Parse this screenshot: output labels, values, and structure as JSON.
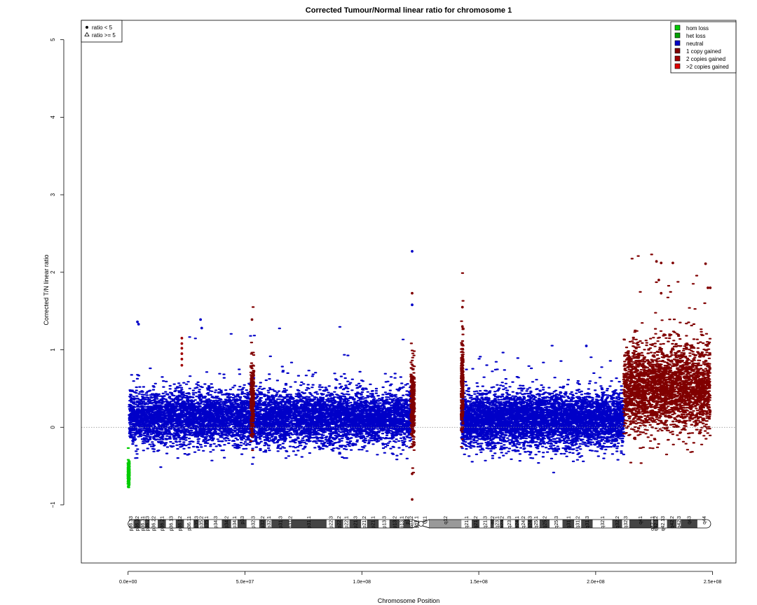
{
  "chart_data": {
    "type": "scatter",
    "title": "Corrected Tumour/Normal linear ratio for chromosome  1",
    "xlabel": "Chromosome Position",
    "ylabel": "Corrected T/N linear ratio",
    "xlim": [
      -20000000,
      260000000
    ],
    "ylim": [
      -1.75,
      5.25
    ],
    "x_ticks": [
      {
        "value": 0,
        "label": "0.0e+00"
      },
      {
        "value": 50000000,
        "label": "5.0e+07"
      },
      {
        "value": 100000000,
        "label": "1.0e+08"
      },
      {
        "value": 150000000,
        "label": "1.5e+08"
      },
      {
        "value": 200000000,
        "label": "2.0e+08"
      },
      {
        "value": 250000000,
        "label": "2.5e+08"
      }
    ],
    "y_ticks": [
      {
        "value": -1,
        "label": "−1"
      },
      {
        "value": 0,
        "label": "0"
      },
      {
        "value": 1,
        "label": "1"
      },
      {
        "value": 2,
        "label": "2"
      },
      {
        "value": 3,
        "label": "3"
      },
      {
        "value": 4,
        "label": "4"
      },
      {
        "value": 5,
        "label": "5"
      }
    ],
    "reference_line": {
      "y": 0,
      "style": "dotted"
    },
    "grid": false,
    "shape_legend": {
      "position": "top-left",
      "entries": [
        {
          "shape": "circle",
          "label": "ratio < 5"
        },
        {
          "shape": "triangle",
          "label": "ratio >= 5"
        }
      ]
    },
    "color_legend": {
      "position": "top-right",
      "entries": [
        {
          "label": "hom loss",
          "color": "#00cc00"
        },
        {
          "label": "het loss",
          "color": "#00a000"
        },
        {
          "label": "neutral",
          "color": "#0000c8"
        },
        {
          "label": "1 copy gained",
          "color": "#800000"
        },
        {
          "label": "2 copies gained",
          "color": "#a00000"
        },
        {
          "label": ">2 copies gained",
          "color": "#e00000"
        }
      ]
    },
    "segments": [
      {
        "state": "hom loss",
        "x_start": 0,
        "x_end": 500000,
        "y_mean": -0.6,
        "y_sd": 0.07
      },
      {
        "state": "neutral",
        "x_start": 500000,
        "x_end": 122000000,
        "y_mean": 0.12,
        "y_sd": 0.17
      },
      {
        "state": "1 copy gained",
        "x_start": 52500000,
        "x_end": 53800000,
        "y_mean": 0.35,
        "y_sd": 0.22
      },
      {
        "state": "1 copy gained",
        "x_start": 121000000,
        "x_end": 122500000,
        "y_mean": 0.3,
        "y_sd": 0.3
      },
      {
        "state": "neutral",
        "x_start": 142500000,
        "x_end": 212000000,
        "y_mean": 0.1,
        "y_sd": 0.17
      },
      {
        "state": "1 copy gained",
        "x_start": 142500000,
        "x_end": 143300000,
        "y_mean": 0.5,
        "y_sd": 0.3
      },
      {
        "state": "1 copy gained",
        "x_start": 212000000,
        "x_end": 249000000,
        "y_mean": 0.5,
        "y_sd": 0.28
      }
    ],
    "highlight_points": [
      {
        "x": 121500000,
        "y": 2.27,
        "state": "neutral"
      },
      {
        "x": 121500000,
        "y": 1.73,
        "state": "1 copy gained"
      },
      {
        "x": 121500000,
        "y": 1.58,
        "state": "neutral"
      },
      {
        "x": 121500000,
        "y": -0.93,
        "state": "1 copy gained"
      },
      {
        "x": 121500000,
        "y": -0.6,
        "state": "1 copy gained"
      },
      {
        "x": 23000000,
        "y": 1.15,
        "state": "2 copies gained"
      },
      {
        "x": 23000000,
        "y": 1.08,
        "state": "2 copies gained"
      },
      {
        "x": 23000000,
        "y": 1.02,
        "state": "2 copies gained"
      },
      {
        "x": 23000000,
        "y": 0.95,
        "state": "2 copies gained"
      },
      {
        "x": 23000000,
        "y": 0.88,
        "state": "2 copies gained"
      },
      {
        "x": 23000000,
        "y": 0.8,
        "state": "2 copies gained"
      },
      {
        "x": 53000000,
        "y": 1.39,
        "state": "1 copy gained"
      },
      {
        "x": 143000000,
        "y": 1.55,
        "state": "1 copy gained"
      },
      {
        "x": 143000000,
        "y": 1.3,
        "state": "1 copy gained"
      },
      {
        "x": 4000000,
        "y": 1.36,
        "state": "neutral"
      },
      {
        "x": 4500000,
        "y": 1.33,
        "state": "neutral"
      },
      {
        "x": 31000000,
        "y": 1.39,
        "state": "neutral"
      },
      {
        "x": 31500000,
        "y": 1.28,
        "state": "neutral"
      },
      {
        "x": 196000000,
        "y": 1.05,
        "state": "neutral"
      },
      {
        "x": 226000000,
        "y": 2.14,
        "state": "1 copy gained"
      },
      {
        "x": 228000000,
        "y": 2.12,
        "state": "1 copy gained"
      },
      {
        "x": 233000000,
        "y": 2.12,
        "state": "1 copy gained"
      },
      {
        "x": 247000000,
        "y": 2.11,
        "state": "1 copy gained"
      },
      {
        "x": 227000000,
        "y": 1.9,
        "state": "1 copy gained"
      },
      {
        "x": 248000000,
        "y": 1.8,
        "state": "1 copy gained"
      },
      {
        "x": 249000000,
        "y": 1.8,
        "state": "1 copy gained"
      },
      {
        "x": 228000000,
        "y": 1.73,
        "state": "1 copy gained"
      }
    ],
    "ideogram": {
      "bands": [
        {
          "name": "p36.33",
          "start": 0,
          "end": 2300000,
          "stain": "gneg"
        },
        {
          "name": "p36.32",
          "start": 2300000,
          "end": 5400000,
          "stain": "gpos25"
        },
        {
          "name": "p36.31",
          "start": 5400000,
          "end": 7200000,
          "stain": "gneg"
        },
        {
          "name": "p36.23",
          "start": 7200000,
          "end": 9200000,
          "stain": "gpos25"
        },
        {
          "name": "p36.22",
          "start": 9200000,
          "end": 12700000,
          "stain": "gneg"
        },
        {
          "name": "p36.21",
          "start": 12700000,
          "end": 16200000,
          "stain": "gpos50"
        },
        {
          "name": "p36.13",
          "start": 16200000,
          "end": 20400000,
          "stain": "gneg"
        },
        {
          "name": "p36.12",
          "start": 20400000,
          "end": 23900000,
          "stain": "gpos25"
        },
        {
          "name": "p36.11",
          "start": 23900000,
          "end": 28000000,
          "stain": "gneg"
        },
        {
          "name": "p35.3",
          "start": 28000000,
          "end": 30200000,
          "stain": "gpos25"
        },
        {
          "name": "p35.2",
          "start": 30200000,
          "end": 32400000,
          "stain": "gneg"
        },
        {
          "name": "p35.1",
          "start": 32400000,
          "end": 34600000,
          "stain": "gpos25"
        },
        {
          "name": "p34.3",
          "start": 34600000,
          "end": 40100000,
          "stain": "gneg"
        },
        {
          "name": "p34.2",
          "start": 40100000,
          "end": 44100000,
          "stain": "gpos25"
        },
        {
          "name": "p34.1",
          "start": 44100000,
          "end": 46800000,
          "stain": "gneg"
        },
        {
          "name": "p33",
          "start": 46800000,
          "end": 50700000,
          "stain": "gpos75"
        },
        {
          "name": "p32.3",
          "start": 50700000,
          "end": 56100000,
          "stain": "gneg"
        },
        {
          "name": "p32.2",
          "start": 56100000,
          "end": 59000000,
          "stain": "gpos50"
        },
        {
          "name": "p32.1",
          "start": 59000000,
          "end": 61300000,
          "stain": "gneg"
        },
        {
          "name": "p31.3",
          "start": 61300000,
          "end": 68900000,
          "stain": "gpos50"
        },
        {
          "name": "p31.2",
          "start": 68900000,
          "end": 69700000,
          "stain": "gneg"
        },
        {
          "name": "p31.1",
          "start": 69700000,
          "end": 84900000,
          "stain": "gpos100"
        },
        {
          "name": "p22.3",
          "start": 84900000,
          "end": 88400000,
          "stain": "gneg"
        },
        {
          "name": "p22.2",
          "start": 88400000,
          "end": 92000000,
          "stain": "gpos75"
        },
        {
          "name": "p22.1",
          "start": 92000000,
          "end": 94700000,
          "stain": "gneg"
        },
        {
          "name": "p21.3",
          "start": 94700000,
          "end": 99700000,
          "stain": "gpos75"
        },
        {
          "name": "p21.2",
          "start": 99700000,
          "end": 102200000,
          "stain": "gneg"
        },
        {
          "name": "p21.1",
          "start": 102200000,
          "end": 107200000,
          "stain": "gpos100"
        },
        {
          "name": "p13.3",
          "start": 107200000,
          "end": 111800000,
          "stain": "gneg"
        },
        {
          "name": "p13.2",
          "start": 111800000,
          "end": 116100000,
          "stain": "gpos50"
        },
        {
          "name": "p13.1",
          "start": 116100000,
          "end": 117800000,
          "stain": "gneg"
        },
        {
          "name": "p12",
          "start": 117800000,
          "end": 120600000,
          "stain": "gpos50"
        },
        {
          "name": "p11.2",
          "start": 120600000,
          "end": 121500000,
          "stain": "gneg"
        },
        {
          "name": "p11.1",
          "start": 121500000,
          "end": 125000000,
          "stain": "acen"
        },
        {
          "name": "q11",
          "start": 125000000,
          "end": 128900000,
          "stain": "acen"
        },
        {
          "name": "q12",
          "start": 128900000,
          "end": 142600000,
          "stain": "gvar"
        },
        {
          "name": "q21.1",
          "start": 142600000,
          "end": 147000000,
          "stain": "gneg"
        },
        {
          "name": "q21.2",
          "start": 147000000,
          "end": 150300000,
          "stain": "gpos50"
        },
        {
          "name": "q21.3",
          "start": 150300000,
          "end": 155000000,
          "stain": "gneg"
        },
        {
          "name": "q22",
          "start": 155000000,
          "end": 156500000,
          "stain": "gpos50"
        },
        {
          "name": "q23.1",
          "start": 156500000,
          "end": 159100000,
          "stain": "gneg"
        },
        {
          "name": "q23.2",
          "start": 159100000,
          "end": 160500000,
          "stain": "gpos50"
        },
        {
          "name": "q23.3",
          "start": 160500000,
          "end": 165500000,
          "stain": "gneg"
        },
        {
          "name": "q24.1",
          "start": 165500000,
          "end": 167200000,
          "stain": "gpos50"
        },
        {
          "name": "q24.2",
          "start": 167200000,
          "end": 170900000,
          "stain": "gneg"
        },
        {
          "name": "q24.3",
          "start": 170900000,
          "end": 172900000,
          "stain": "gpos75"
        },
        {
          "name": "q25.1",
          "start": 172900000,
          "end": 176000000,
          "stain": "gneg"
        },
        {
          "name": "q25.2",
          "start": 176000000,
          "end": 180300000,
          "stain": "gpos50"
        },
        {
          "name": "q25.3",
          "start": 180300000,
          "end": 185800000,
          "stain": "gneg"
        },
        {
          "name": "q31.1",
          "start": 185800000,
          "end": 190800000,
          "stain": "gpos100"
        },
        {
          "name": "q31.2",
          "start": 190800000,
          "end": 193800000,
          "stain": "gneg"
        },
        {
          "name": "q31.3",
          "start": 193800000,
          "end": 198700000,
          "stain": "gpos100"
        },
        {
          "name": "q32.1",
          "start": 198700000,
          "end": 207100000,
          "stain": "gneg"
        },
        {
          "name": "q32.2",
          "start": 207100000,
          "end": 211300000,
          "stain": "gpos25"
        },
        {
          "name": "q32.3",
          "start": 211300000,
          "end": 214400000,
          "stain": "gneg"
        },
        {
          "name": "q41",
          "start": 214400000,
          "end": 223900000,
          "stain": "gpos100"
        },
        {
          "name": "q42.11",
          "start": 223900000,
          "end": 224400000,
          "stain": "gneg"
        },
        {
          "name": "q42.12",
          "start": 224400000,
          "end": 226800000,
          "stain": "gpos25"
        },
        {
          "name": "q42.13",
          "start": 226800000,
          "end": 230500000,
          "stain": "gneg"
        },
        {
          "name": "q42.2",
          "start": 230500000,
          "end": 234600000,
          "stain": "gpos50"
        },
        {
          "name": "q42.3",
          "start": 234600000,
          "end": 236400000,
          "stain": "gneg"
        },
        {
          "name": "q43",
          "start": 236400000,
          "end": 243500000,
          "stain": "gpos75"
        },
        {
          "name": "q44",
          "start": 243500000,
          "end": 249200000,
          "stain": "gneg"
        }
      ],
      "stain_colors": {
        "gneg": "#ffffff",
        "gpos25": "#444444",
        "gpos50": "#444444",
        "gpos75": "#444444",
        "gpos100": "#444444",
        "gvar": "#999999",
        "acen": "#ffffff"
      }
    }
  }
}
